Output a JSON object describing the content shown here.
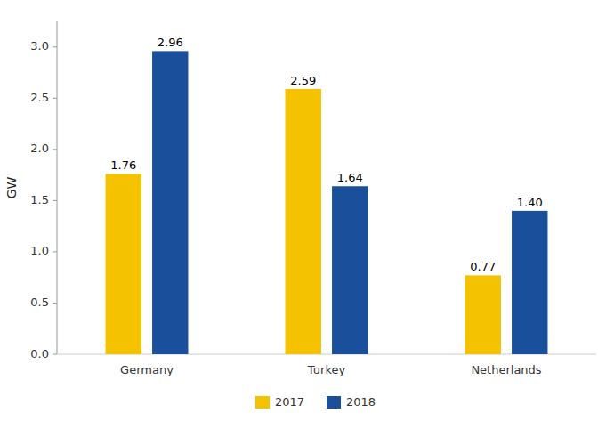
{
  "chart_data": {
    "type": "bar",
    "categories": [
      "Germany",
      "Turkey",
      "Netherlands"
    ],
    "series": [
      {
        "name": "2017",
        "color": "#F5C200",
        "values": [
          1.76,
          2.59,
          0.77
        ],
        "value_labels": [
          "1.76",
          "2.59",
          "0.77"
        ]
      },
      {
        "name": "2018",
        "color": "#1A4F9C",
        "values": [
          2.96,
          1.64,
          1.4
        ],
        "value_labels": [
          "2.96",
          "1.64",
          "1.40"
        ]
      }
    ],
    "ylabel": "GW",
    "ylim": [
      0,
      3.25
    ],
    "yticks": [
      {
        "value": 0,
        "label": "0.0"
      },
      0.5,
      {
        "value": 1.0,
        "label": "1.0"
      },
      1.5,
      {
        "value": 2.0,
        "label": "2.0"
      },
      2.5,
      {
        "value": 3.0,
        "label": "3.0"
      }
    ],
    "grid": false,
    "legend": "bottom",
    "data_labels": true
  }
}
